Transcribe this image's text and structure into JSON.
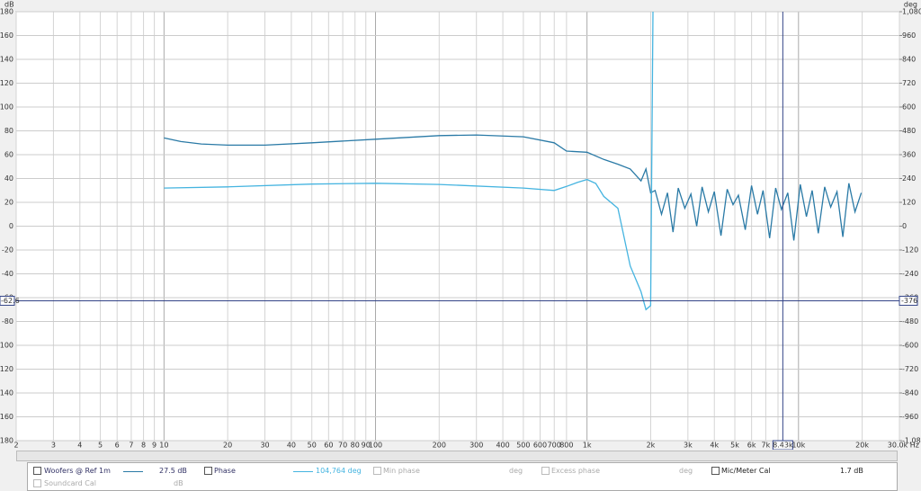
{
  "chart_data": {
    "type": "line",
    "y_axis_label": "dB",
    "y2_axis_label": "deg",
    "xlog": true,
    "grid": true,
    "xlim": [
      2,
      30000
    ],
    "ylim": [
      -180,
      180
    ],
    "y2lim": [
      -1080,
      1080
    ],
    "xticks": [
      2,
      3,
      4,
      5,
      6,
      7,
      8,
      9,
      10,
      20,
      30,
      40,
      50,
      60,
      70,
      80,
      90,
      100,
      200,
      300,
      400,
      500,
      600,
      700,
      800,
      {
        "value": 1000,
        "label": "1k"
      },
      {
        "value": 2000,
        "label": "2k"
      },
      {
        "value": 3000,
        "label": "3k"
      },
      {
        "value": 4000,
        "label": "4k"
      },
      {
        "value": 5000,
        "label": "5k"
      },
      {
        "value": 6000,
        "label": "6k"
      },
      {
        "value": 7000,
        "label": "7k"
      },
      {
        "value": 8000,
        "label": "8k"
      },
      {
        "value": 10000,
        "label": "10k"
      },
      {
        "value": 20000,
        "label": "20k"
      },
      {
        "value": 30000,
        "label": "30.0k Hz"
      }
    ],
    "yticks": [
      180,
      160,
      140,
      120,
      100,
      80,
      60,
      40,
      20,
      0,
      -20,
      -40,
      -60,
      -80,
      -100,
      -120,
      -140,
      -160,
      -180
    ],
    "y2ticks": [
      {
        "value": 1080,
        "label": "1,080"
      },
      960,
      840,
      720,
      600,
      480,
      360,
      240,
      120,
      0,
      -120,
      -240,
      -360,
      -480,
      -600,
      -720,
      -840,
      -960,
      {
        "value": -1080,
        "label": "-1,080"
      }
    ],
    "cursor": {
      "y": -62.6,
      "y2": -376,
      "x": {
        "value": 8430,
        "label": "8.43k"
      }
    },
    "series": [
      {
        "name": "Woofers @ Ref 1m",
        "color": "#2a7aa6",
        "x": [
          10,
          12,
          15,
          20,
          30,
          50,
          100,
          200,
          300,
          500,
          700,
          800,
          1000,
          1200,
          1400,
          1600,
          1800,
          1900,
          2000,
          2100,
          2250,
          2400,
          2550,
          2700,
          2900,
          3100,
          3300,
          3500,
          3750,
          4000,
          4300,
          4600,
          4900,
          5200,
          5600,
          6000,
          6400,
          6800,
          7300,
          7800,
          8300,
          8900,
          9500,
          10200,
          10900,
          11600,
          12400,
          13300,
          14200,
          15200,
          16200,
          17300,
          18500,
          19800
        ],
        "values": [
          74,
          71,
          69,
          68,
          68,
          70,
          73,
          76,
          76.5,
          75,
          70,
          63,
          62,
          56,
          52,
          48,
          38,
          48,
          28,
          30,
          10,
          28,
          -5,
          32,
          15,
          27,
          0,
          33,
          12,
          29,
          -8,
          31,
          18,
          26,
          -3,
          34,
          10,
          30,
          -10,
          32,
          14,
          28,
          -12,
          35,
          8,
          30,
          -6,
          33,
          16,
          29,
          -9,
          36,
          12,
          28
        ]
      },
      {
        "name": "Phase",
        "color": "#45b4e0",
        "axis": "y2",
        "x": [
          10,
          20,
          50,
          100,
          200,
          500,
          700,
          800,
          900,
          1000,
          1100,
          1200,
          1400,
          1600,
          1800,
          1900,
          2000,
          2050
        ],
        "values": [
          192,
          198,
          212,
          216,
          210,
          192,
          180,
          200,
          220,
          235,
          215,
          150,
          90,
          -200,
          -330,
          -420,
          -400,
          1080
        ]
      }
    ]
  },
  "legend": {
    "series0_value": "27.5 dB",
    "series1_value": "104,764 deg",
    "min_phase": "Min phase",
    "min_phase_unit": "deg",
    "excess_phase": "Excess phase",
    "excess_phase_unit": "deg",
    "mic_cal": "Mic/Meter Cal",
    "mic_cal_value": "1.7 dB",
    "soundcard_cal": "Soundcard Cal",
    "soundcard_unit": "dB"
  }
}
